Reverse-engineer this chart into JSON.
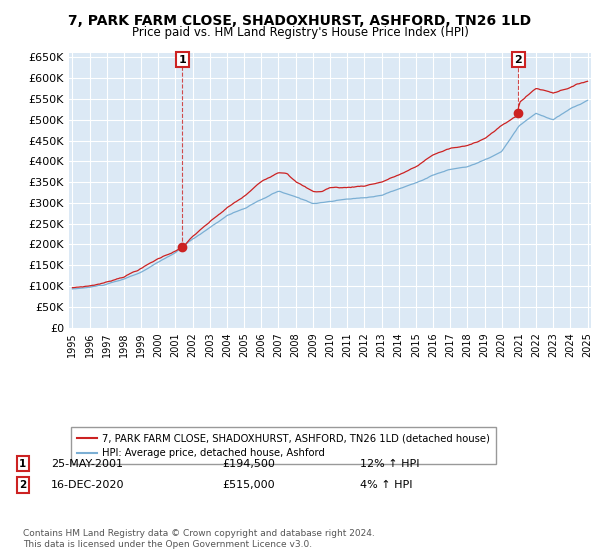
{
  "title": "7, PARK FARM CLOSE, SHADOXHURST, ASHFORD, TN26 1LD",
  "subtitle": "Price paid vs. HM Land Registry's House Price Index (HPI)",
  "ytick_values": [
    0,
    50000,
    100000,
    150000,
    200000,
    250000,
    300000,
    350000,
    400000,
    450000,
    500000,
    550000,
    600000,
    650000
  ],
  "xmin": 1995,
  "xmax": 2025,
  "ymin": 0,
  "ymax": 660000,
  "sale1_year": 2001.39,
  "sale1_price": 194500,
  "sale1_label": "1",
  "sale2_year": 2020.96,
  "sale2_price": 515000,
  "sale2_label": "2",
  "hpi_color": "#7bafd4",
  "price_color": "#cc2222",
  "bg_color": "#ffffff",
  "plot_bg_color": "#dce9f5",
  "grid_color": "#ffffff",
  "legend_line1": "7, PARK FARM CLOSE, SHADOXHURST, ASHFORD, TN26 1LD (detached house)",
  "legend_line2": "HPI: Average price, detached house, Ashford",
  "annotation1_box": "1",
  "annotation1_date": "25-MAY-2001",
  "annotation1_price": "£194,500",
  "annotation1_hpi": "12% ↑ HPI",
  "annotation2_box": "2",
  "annotation2_date": "16-DEC-2020",
  "annotation2_price": "£515,000",
  "annotation2_hpi": "4% ↑ HPI",
  "footer": "Contains HM Land Registry data © Crown copyright and database right 2024.\nThis data is licensed under the Open Government Licence v3.0."
}
